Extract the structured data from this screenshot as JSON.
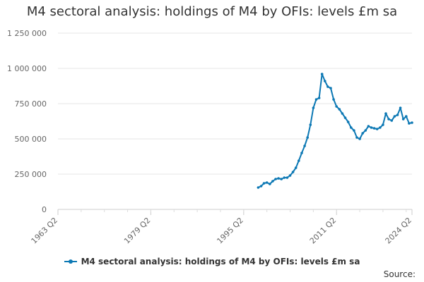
{
  "chart_data": {
    "type": "line",
    "title": "M4 sectoral analysis: holdings of M4 by OFIs: levels £m sa",
    "xlabel": "",
    "ylabel": "",
    "x_range": [
      "1963 Q2",
      "2024 Q2"
    ],
    "x_ticks": [
      "1963 Q2",
      "1979 Q2",
      "1995 Q2",
      "2011 Q2",
      "2024 Q2"
    ],
    "ylim": [
      0,
      1250000
    ],
    "y_ticks": [
      0,
      250000,
      500000,
      750000,
      1000000,
      1250000
    ],
    "y_tick_labels": [
      "0",
      "250 000",
      "500 000",
      "750 000",
      "1 000 000",
      "1 250 000"
    ],
    "grid": "horizontal",
    "legend_position": "bottom-center",
    "series": [
      {
        "name": "M4 sectoral analysis: holdings of M4 by OFIs: levels £m sa",
        "color": "#0c78b4",
        "x": [
          "1997 Q4",
          "1998 Q2",
          "1998 Q4",
          "1999 Q2",
          "1999 Q4",
          "2000 Q2",
          "2000 Q4",
          "2001 Q2",
          "2001 Q4",
          "2002 Q2",
          "2002 Q4",
          "2003 Q2",
          "2003 Q4",
          "2004 Q2",
          "2004 Q4",
          "2005 Q2",
          "2005 Q4",
          "2006 Q2",
          "2006 Q4",
          "2007 Q2",
          "2007 Q4",
          "2008 Q2",
          "2008 Q4",
          "2009 Q2",
          "2009 Q4",
          "2010 Q2",
          "2010 Q4",
          "2011 Q2",
          "2011 Q4",
          "2012 Q2",
          "2012 Q4",
          "2013 Q2",
          "2013 Q4",
          "2014 Q2",
          "2014 Q4",
          "2015 Q2",
          "2015 Q4",
          "2016 Q2",
          "2016 Q4",
          "2017 Q2",
          "2017 Q4",
          "2018 Q2",
          "2018 Q4",
          "2019 Q2",
          "2019 Q4",
          "2020 Q2",
          "2020 Q4",
          "2021 Q2",
          "2021 Q4",
          "2022 Q2",
          "2022 Q4",
          "2023 Q2",
          "2023 Q4",
          "2024 Q2"
        ],
        "values": [
          155000,
          165000,
          185000,
          190000,
          180000,
          200000,
          215000,
          220000,
          215000,
          225000,
          225000,
          240000,
          265000,
          295000,
          345000,
          400000,
          450000,
          510000,
          600000,
          720000,
          780000,
          790000,
          960000,
          910000,
          870000,
          860000,
          780000,
          730000,
          710000,
          680000,
          650000,
          620000,
          580000,
          560000,
          510000,
          500000,
          540000,
          560000,
          590000,
          580000,
          575000,
          570000,
          580000,
          600000,
          680000,
          640000,
          630000,
          660000,
          670000,
          720000,
          640000,
          660000,
          610000,
          615000
        ]
      }
    ]
  },
  "source_label": "Source:"
}
